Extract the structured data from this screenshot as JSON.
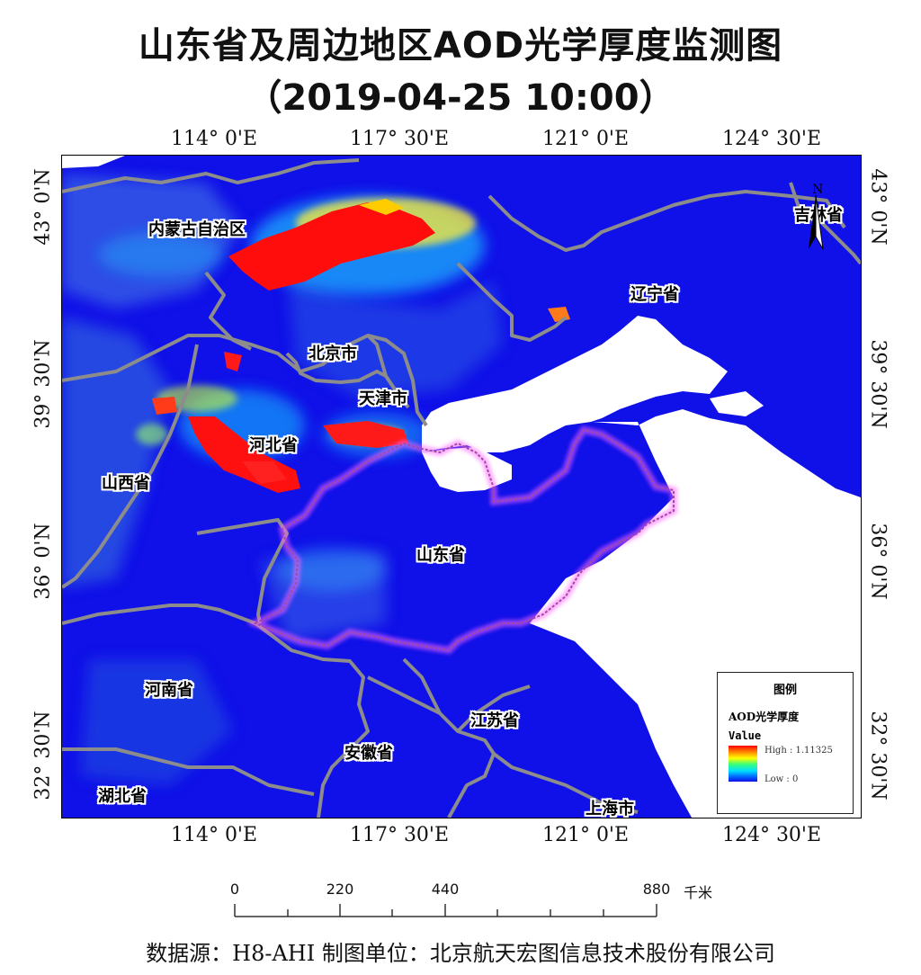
{
  "title": "山东省及周边地区AOD光学厚度监测图",
  "subtitle": "（2019-04-25 10:00）",
  "lon_ticks": [
    "114° 0'E",
    "117° 30'E",
    "121° 0'E",
    "124° 30'E"
  ],
  "lat_ticks": [
    "43° 0'N",
    "39° 30'N",
    "36° 0'N",
    "32° 30'N"
  ],
  "places": [
    "内蒙古自治区",
    "吉林省",
    "辽宁省",
    "北京市",
    "天津市",
    "河北省",
    "山西省",
    "山东省",
    "河南省",
    "江苏省",
    "安徽省",
    "湖北省",
    "上海市"
  ],
  "compass_label": "N",
  "legend": {
    "title": "图例",
    "heading": "AOD光学厚度",
    "value_label": "Value",
    "high": "High : 1.11325",
    "low": "Low : 0",
    "colors": [
      "#ff0000",
      "#ffff00",
      "#00e0ff",
      "#1010e8"
    ]
  },
  "scale": {
    "labels": [
      "0",
      "220",
      "440",
      "880"
    ],
    "unit": "千米"
  },
  "footer": "数据源：H8-AHI 制图单位：北京航天宏图信息技术股份有限公司"
}
